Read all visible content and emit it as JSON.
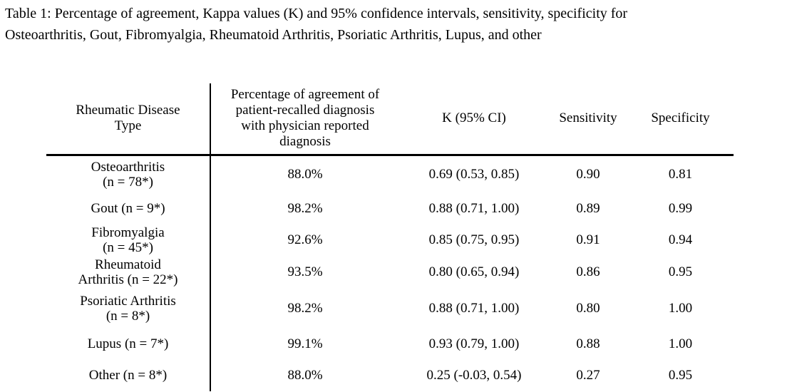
{
  "caption": "Table 1: Percentage of agreement, Kappa values (K) and 95% confidence intervals, sensitivity, specificity for\nOsteoarthritis, Gout, Fibromyalgia, Rheumatoid Arthritis, Psoriatic Arthritis, Lupus, and other",
  "table": {
    "headers": [
      "Rheumatic Disease\nType",
      "Percentage of agreement of\npatient-recalled diagnosis\nwith physician reported\ndiagnosis",
      "K (95% CI)",
      "Sensitivity",
      "Specificity"
    ],
    "rows": [
      {
        "disease": "Osteoarthritis\n(n = 78*)",
        "agreement": "88.0%",
        "kappa_ci": "0.69 (0.53, 0.85)",
        "sensitivity": "0.90",
        "specificity": "0.81"
      },
      {
        "disease": "Gout (n = 9*)",
        "agreement": "98.2%",
        "kappa_ci": "0.88 (0.71, 1.00)",
        "sensitivity": "0.89",
        "specificity": "0.99"
      },
      {
        "disease": "Fibromyalgia\n(n = 45*)",
        "agreement": "92.6%",
        "kappa_ci": "0.85 (0.75, 0.95)",
        "sensitivity": "0.91",
        "specificity": "0.94"
      },
      {
        "disease": "Rheumatoid\nArthritis (n = 22*)",
        "agreement": "93.5%",
        "kappa_ci": "0.80 (0.65, 0.94)",
        "sensitivity": "0.86",
        "specificity": "0.95"
      },
      {
        "disease": "Psoriatic Arthritis\n(n = 8*)",
        "agreement": "98.2%",
        "kappa_ci": "0.88 (0.71, 1.00)",
        "sensitivity": "0.80",
        "specificity": "1.00"
      },
      {
        "disease": "Lupus (n = 7*)",
        "agreement": "99.1%",
        "kappa_ci": "0.93 (0.79, 1.00)",
        "sensitivity": "0.88",
        "specificity": "1.00"
      },
      {
        "disease": "Other (n = 8*)",
        "agreement": "88.0%",
        "kappa_ci": "0.25 (-0.03, 0.54)",
        "sensitivity": "0.27",
        "specificity": "0.95"
      }
    ]
  },
  "colors": {
    "text": "#000000",
    "background": "#ffffff",
    "rule": "#000000"
  }
}
